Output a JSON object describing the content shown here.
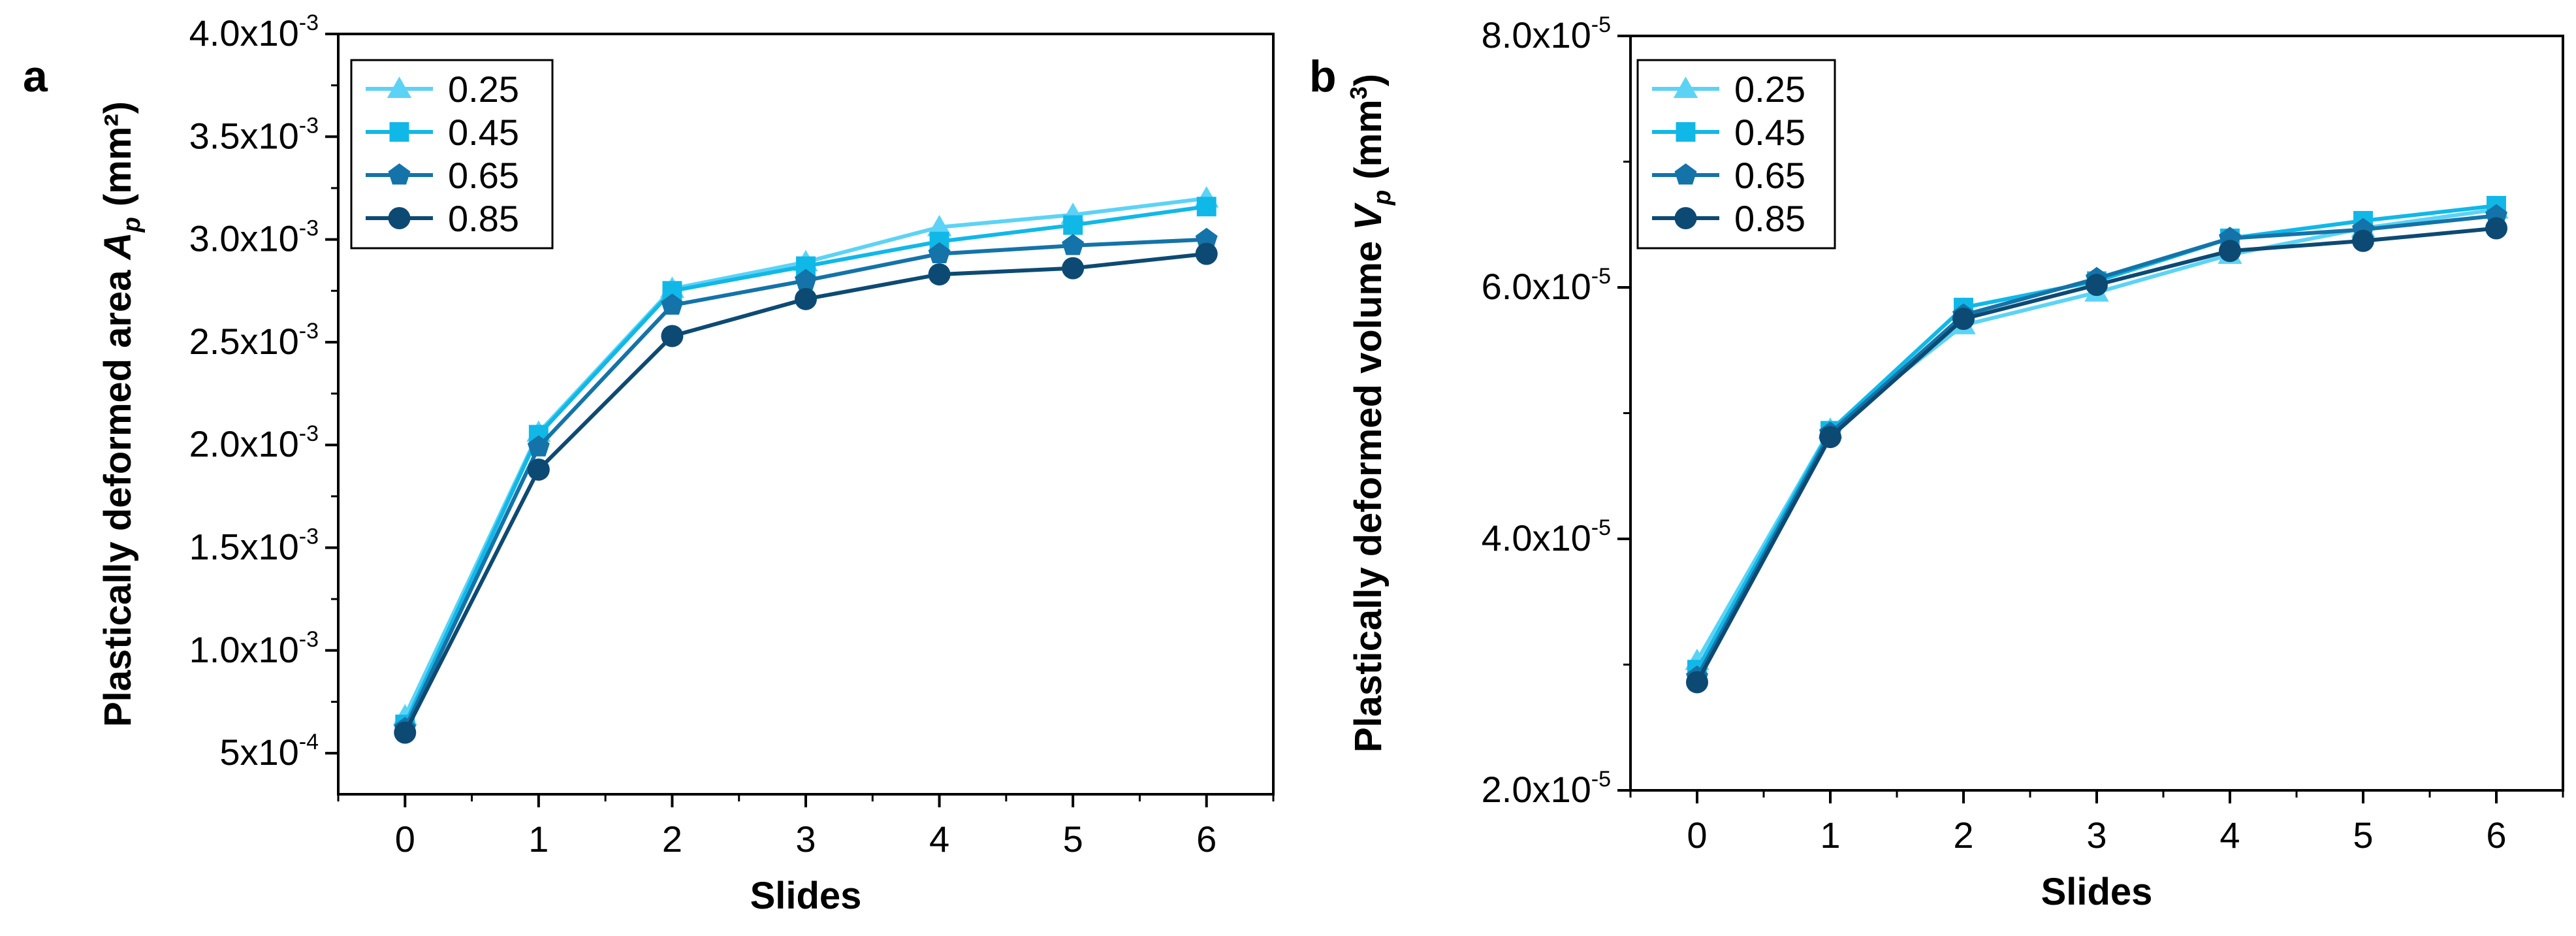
{
  "chart_data": [
    {
      "panel": "a",
      "type": "line",
      "xlabel": "Slides",
      "ylabel": {
        "main": "Plastically deformed area ",
        "symbol": "A",
        "subscript": "p",
        "units": " (mm²)"
      },
      "x": [
        0,
        1,
        2,
        3,
        4,
        5,
        6
      ],
      "xticks": [
        "0",
        "1",
        "2",
        "3",
        "4",
        "5",
        "6"
      ],
      "xlim": [
        -0.5,
        6.5
      ],
      "ylim": [
        0.0003,
        0.004
      ],
      "yticks": [
        {
          "value": 0.0005,
          "mantissa": "5x10",
          "exponent": "-4"
        },
        {
          "value": 0.001,
          "mantissa": "1.0x10",
          "exponent": "-3"
        },
        {
          "value": 0.0015,
          "mantissa": "1.5x10",
          "exponent": "-3"
        },
        {
          "value": 0.002,
          "mantissa": "2.0x10",
          "exponent": "-3"
        },
        {
          "value": 0.0025,
          "mantissa": "2.5x10",
          "exponent": "-3"
        },
        {
          "value": 0.003,
          "mantissa": "3.0x10",
          "exponent": "-3"
        },
        {
          "value": 0.0035,
          "mantissa": "3.5x10",
          "exponent": "-3"
        },
        {
          "value": 0.004,
          "mantissa": "4.0x10",
          "exponent": "-3"
        }
      ],
      "legend_position": "top-left",
      "series": [
        {
          "name": "0.25",
          "marker": "triangle",
          "color": "#5cd3f5",
          "values": [
            0.00068,
            0.00206,
            0.00276,
            0.00289,
            0.00306,
            0.00312,
            0.0032
          ]
        },
        {
          "name": "0.45",
          "marker": "square",
          "color": "#10b8e8",
          "values": [
            0.00064,
            0.00205,
            0.00275,
            0.00287,
            0.00299,
            0.00307,
            0.00316
          ]
        },
        {
          "name": "0.65",
          "marker": "pentagon",
          "color": "#1473a8",
          "values": [
            0.00062,
            0.00199,
            0.00268,
            0.0028,
            0.00293,
            0.00297,
            0.003
          ]
        },
        {
          "name": "0.85",
          "marker": "circle",
          "color": "#0d4a73",
          "values": [
            0.0006,
            0.00188,
            0.00253,
            0.00271,
            0.00283,
            0.00286,
            0.00293
          ]
        }
      ]
    },
    {
      "panel": "b",
      "type": "line",
      "xlabel": "Slides",
      "ylabel": {
        "main": "Plastically deformed volume ",
        "symbol": "V",
        "subscript": "p",
        "units": " (mm",
        "units_sup": "3",
        "units_end": ")"
      },
      "x": [
        0,
        1,
        2,
        3,
        4,
        5,
        6
      ],
      "xticks": [
        "0",
        "1",
        "2",
        "3",
        "4",
        "5",
        "6"
      ],
      "xlim": [
        -0.5,
        6.5
      ],
      "ylim": [
        2e-05,
        8e-05
      ],
      "yticks": [
        {
          "value": 2e-05,
          "mantissa": "2.0x10",
          "exponent": "-5"
        },
        {
          "value": 4e-05,
          "mantissa": "4.0x10",
          "exponent": "-5"
        },
        {
          "value": 6e-05,
          "mantissa": "6.0x10",
          "exponent": "-5"
        },
        {
          "value": 8e-05,
          "mantissa": "8.0x10",
          "exponent": "-5"
        }
      ],
      "legend_position": "top-left",
      "series": [
        {
          "name": "0.25",
          "marker": "triangle",
          "color": "#5cd3f5",
          "values": [
            3.03e-05,
            4.87e-05,
            5.7e-05,
            5.96e-05,
            6.26e-05,
            6.47e-05,
            6.62e-05
          ]
        },
        {
          "name": "0.45",
          "marker": "square",
          "color": "#10b8e8",
          "values": [
            2.96e-05,
            4.86e-05,
            5.84e-05,
            6.05e-05,
            6.39e-05,
            6.53e-05,
            6.65e-05
          ]
        },
        {
          "name": "0.65",
          "marker": "pentagon",
          "color": "#1473a8",
          "values": [
            2.9e-05,
            4.84e-05,
            5.78e-05,
            6.07e-05,
            6.39e-05,
            6.46e-05,
            6.57e-05
          ]
        },
        {
          "name": "0.85",
          "marker": "circle",
          "color": "#0d4a73",
          "values": [
            2.86e-05,
            4.81e-05,
            5.75e-05,
            6.02e-05,
            6.29e-05,
            6.37e-05,
            6.47e-05
          ]
        }
      ]
    }
  ]
}
